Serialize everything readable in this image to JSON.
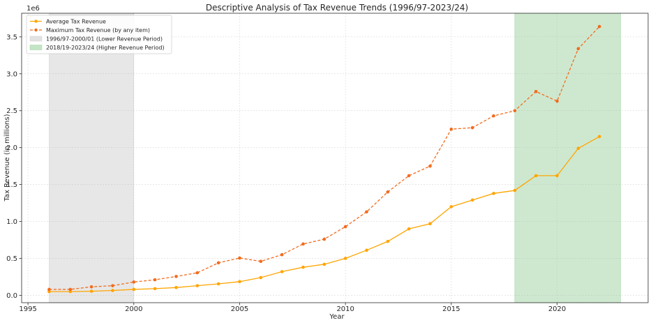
{
  "chart_data": {
    "type": "line",
    "title": "Descriptive Analysis of Tax Revenue Trends (1996/97-2023/24)",
    "xlabel": "Year",
    "ylabel": "Tax Revenue (in millions)",
    "y_offset_label": "1e6",
    "xlim": [
      1994.7,
      2024.3
    ],
    "ylim": [
      -0.1,
      3.82
    ],
    "x_ticks": [
      1995,
      2000,
      2005,
      2010,
      2015,
      2020
    ],
    "y_ticks": [
      0.0,
      0.5,
      1.0,
      1.5,
      2.0,
      2.5,
      3.0,
      3.5
    ],
    "grid": true,
    "legend_position": "upper-left",
    "x": [
      1996,
      1997,
      1998,
      1999,
      2000,
      2001,
      2002,
      2003,
      2004,
      2005,
      2006,
      2007,
      2008,
      2009,
      2010,
      2011,
      2012,
      2013,
      2014,
      2015,
      2016,
      2017,
      2018,
      2019,
      2020,
      2021,
      2022
    ],
    "series": [
      {
        "name": "Average Tax Revenue",
        "color": "#FFA500",
        "style": "solid",
        "values": [
          0.05,
          0.05,
          0.055,
          0.065,
          0.08,
          0.09,
          0.105,
          0.13,
          0.155,
          0.185,
          0.24,
          0.32,
          0.38,
          0.42,
          0.5,
          0.61,
          0.73,
          0.9,
          0.97,
          1.2,
          1.29,
          1.38,
          1.42,
          1.62,
          1.62,
          1.99,
          2.15
        ]
      },
      {
        "name": "Maximum Tax Revenue (by any item)",
        "color": "#F26B1D",
        "style": "dashed",
        "values": [
          0.08,
          0.08,
          0.115,
          0.13,
          0.18,
          0.21,
          0.255,
          0.305,
          0.44,
          0.505,
          0.46,
          0.55,
          0.695,
          0.76,
          0.93,
          1.13,
          1.4,
          1.62,
          1.75,
          2.25,
          2.27,
          2.43,
          2.5,
          2.76,
          2.63,
          3.34,
          3.64
        ]
      }
    ],
    "shaded_regions": [
      {
        "name": "1996/97-2000/01 (Lower Revenue Period)",
        "x_start": 1996,
        "x_end": 2000,
        "color": "#d3d3d3"
      },
      {
        "name": "2018/19-2023/24 (Higher Revenue Period)",
        "x_start": 2018,
        "x_end": 2023,
        "color": "#a5d6a7"
      }
    ]
  }
}
